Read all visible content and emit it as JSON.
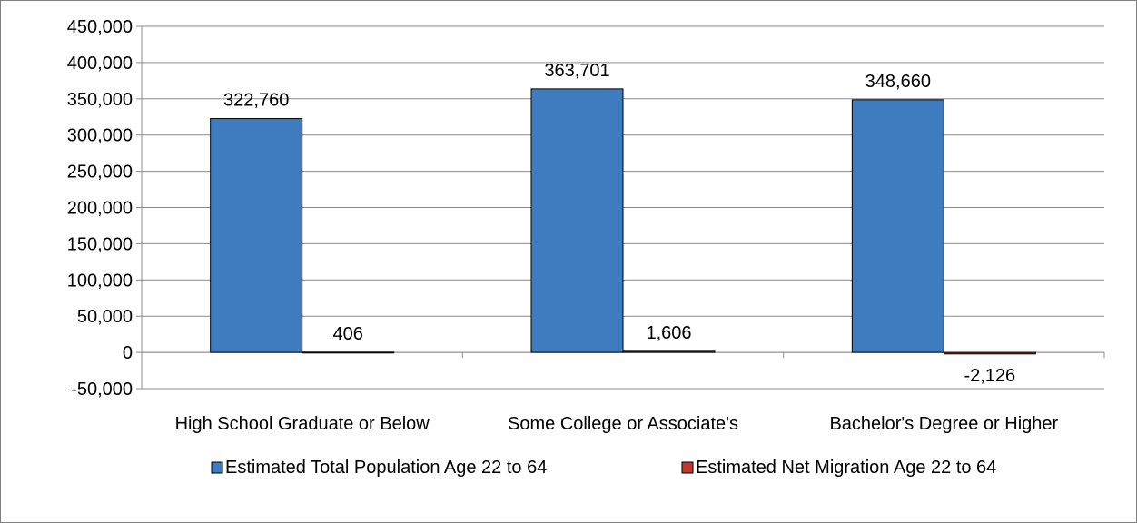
{
  "chart_data": {
    "type": "bar",
    "categories": [
      "High School Graduate or Below",
      "Some College or Associate's",
      "Bachelor's Degree or Higher"
    ],
    "series": [
      {
        "name": "Estimated Total Population Age 22 to 64",
        "color": "#3f7bbf",
        "values": [
          322760,
          363701,
          348660
        ],
        "labels": [
          "322,760",
          "363,701",
          "348,660"
        ]
      },
      {
        "name": "Estimated Net Migration Age 22 to 64",
        "color": "#c0392b",
        "values": [
          406,
          1606,
          -2126
        ],
        "labels": [
          "406",
          "1,606",
          "-2,126"
        ]
      }
    ],
    "ylim": [
      -50000,
      450000
    ],
    "y_ticks": [
      {
        "value": 450000,
        "label": "450,000"
      },
      {
        "value": 400000,
        "label": "400,000"
      },
      {
        "value": 350000,
        "label": "350,000"
      },
      {
        "value": 300000,
        "label": "300,000"
      },
      {
        "value": 250000,
        "label": "250,000"
      },
      {
        "value": 200000,
        "label": "200,000"
      },
      {
        "value": 150000,
        "label": "150,000"
      },
      {
        "value": 100000,
        "label": "100,000"
      },
      {
        "value": 50000,
        "label": "50,000"
      },
      {
        "value": 0,
        "label": "0"
      },
      {
        "value": -50000,
        "label": "-50,000"
      }
    ],
    "grid": true,
    "legend_position": "bottom",
    "title": "",
    "xlabel": "",
    "ylabel": ""
  }
}
